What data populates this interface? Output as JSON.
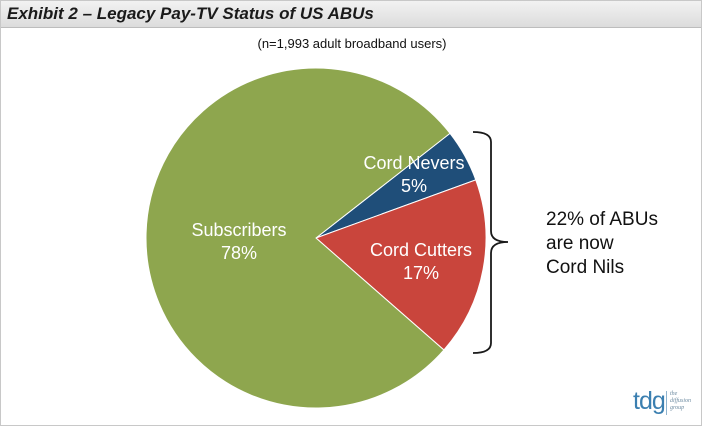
{
  "header": {
    "title": "Exhibit 2 – Legacy Pay-TV Status of US ABUs"
  },
  "chart_data": {
    "type": "pie",
    "subtitle": "(n=1,993 adult broadband users)",
    "slices": [
      {
        "label": "Cord Nevers",
        "value": 5,
        "value_label": "5%",
        "color": "#1f4e79",
        "label_color": "#ffffff"
      },
      {
        "label": "Cord Cutters",
        "value": 17,
        "value_label": "17%",
        "color": "#c9453c",
        "label_color": "#ffffff"
      },
      {
        "label": "Subscribers",
        "value": 78,
        "value_label": "78%",
        "color": "#8ea64e",
        "label_color": "#ffffff"
      }
    ],
    "annotation": {
      "lines": [
        "22% of ABUs",
        "are now",
        "Cord Nils"
      ],
      "brace_spans": [
        "Cord Nevers",
        "Cord Cutters"
      ]
    }
  },
  "logo": {
    "mark": "tdg",
    "tagline_lines": [
      "the",
      "diffusion",
      "group"
    ]
  }
}
